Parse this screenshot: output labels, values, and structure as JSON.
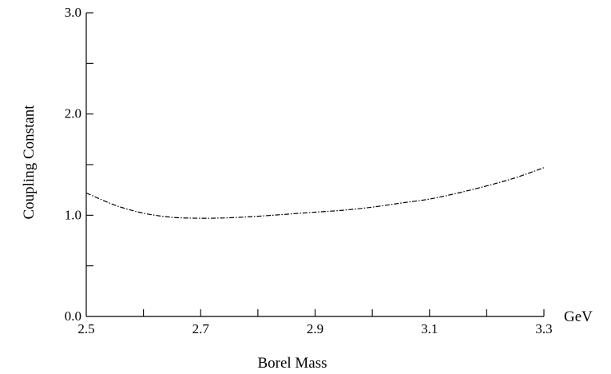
{
  "chart_data": {
    "type": "line",
    "title": "",
    "xlabel": "Borel Mass",
    "ylabel": "Coupling Constant",
    "x_unit": "GeV",
    "xlim": [
      2.5,
      3.3
    ],
    "ylim": [
      0.0,
      3.0
    ],
    "x_ticks": [
      {
        "value": 2.5,
        "label": "2.5"
      },
      {
        "value": 2.7,
        "label": "2.7"
      },
      {
        "value": 2.9,
        "label": "2.9"
      },
      {
        "value": 3.1,
        "label": "3.1"
      },
      {
        "value": 3.3,
        "label": "3.3"
      }
    ],
    "x_minor_ticks": [
      2.6,
      2.8,
      3.0,
      3.2
    ],
    "y_ticks": [
      {
        "value": 0.0,
        "label": "0.0"
      },
      {
        "value": 1.0,
        "label": "1.0"
      },
      {
        "value": 2.0,
        "label": "2.0"
      },
      {
        "value": 3.0,
        "label": "3.0"
      }
    ],
    "y_minor_ticks": [
      0.5,
      1.5,
      2.5
    ],
    "grid": false,
    "series": [
      {
        "line_style": "dash-dot",
        "x": [
          2.5,
          2.55,
          2.6,
          2.65,
          2.7,
          2.75,
          2.8,
          2.85,
          2.9,
          2.95,
          3.0,
          3.05,
          3.1,
          3.15,
          3.2,
          3.25,
          3.3
        ],
        "y": [
          1.22,
          1.1,
          1.02,
          0.98,
          0.97,
          0.975,
          0.99,
          1.01,
          1.03,
          1.05,
          1.08,
          1.12,
          1.16,
          1.22,
          1.29,
          1.37,
          1.47
        ]
      }
    ]
  }
}
